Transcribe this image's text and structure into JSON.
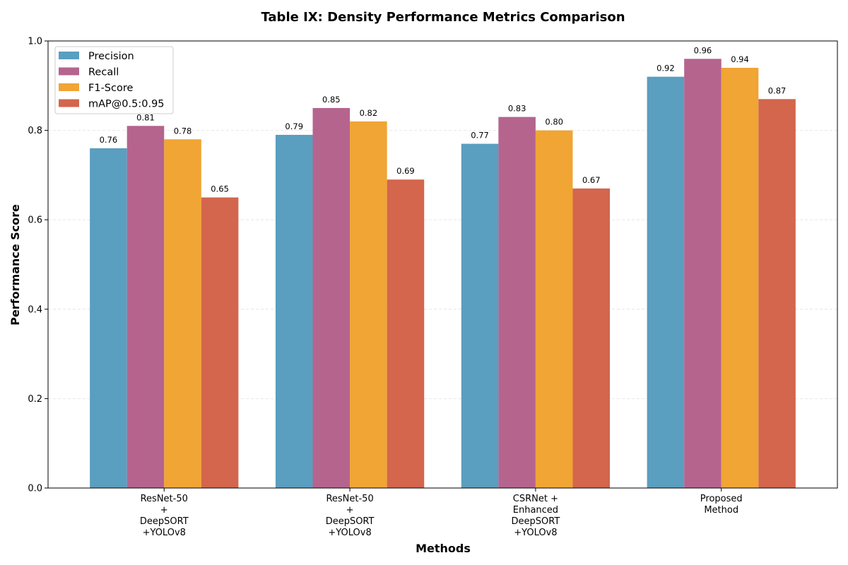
{
  "chart_data": {
    "type": "bar",
    "title": "Table IX: Density Performance Metrics Comparison",
    "xlabel": "Methods",
    "ylabel": "Performance Score",
    "ylim": [
      0,
      1.0
    ],
    "yticks": [
      "0.0",
      "0.2",
      "0.4",
      "0.6",
      "0.8",
      "1.0"
    ],
    "grid": true,
    "legend_position": "top-left",
    "categories": [
      [
        "ResNet-50",
        "+",
        "DeepSORT",
        "+YOLOv8"
      ],
      [
        "ResNet-50",
        "+",
        "DeepSORT",
        "+YOLOv8"
      ],
      [
        "CSRNet +",
        "Enhanced",
        "DeepSORT",
        "+YOLOv8"
      ],
      [
        "Proposed",
        "Method"
      ]
    ],
    "series": [
      {
        "name": "Precision",
        "color": "#5a9ec0",
        "values": [
          0.76,
          0.79,
          0.77,
          0.92
        ],
        "labels": [
          "0.76",
          "0.79",
          "0.77",
          "0.92"
        ]
      },
      {
        "name": "Recall",
        "color": "#b5648e",
        "values": [
          0.81,
          0.85,
          0.83,
          0.96
        ],
        "labels": [
          "0.81",
          "0.85",
          "0.83",
          "0.96"
        ]
      },
      {
        "name": "F1-Score",
        "color": "#f0a535",
        "values": [
          0.78,
          0.82,
          0.8,
          0.94
        ],
        "labels": [
          "0.78",
          "0.82",
          "0.80",
          "0.94"
        ]
      },
      {
        "name": "mAP@0.5:0.95",
        "color": "#d3664c",
        "values": [
          0.65,
          0.69,
          0.67,
          0.87
        ],
        "labels": [
          "0.65",
          "0.69",
          "0.67",
          "0.87"
        ]
      }
    ]
  }
}
